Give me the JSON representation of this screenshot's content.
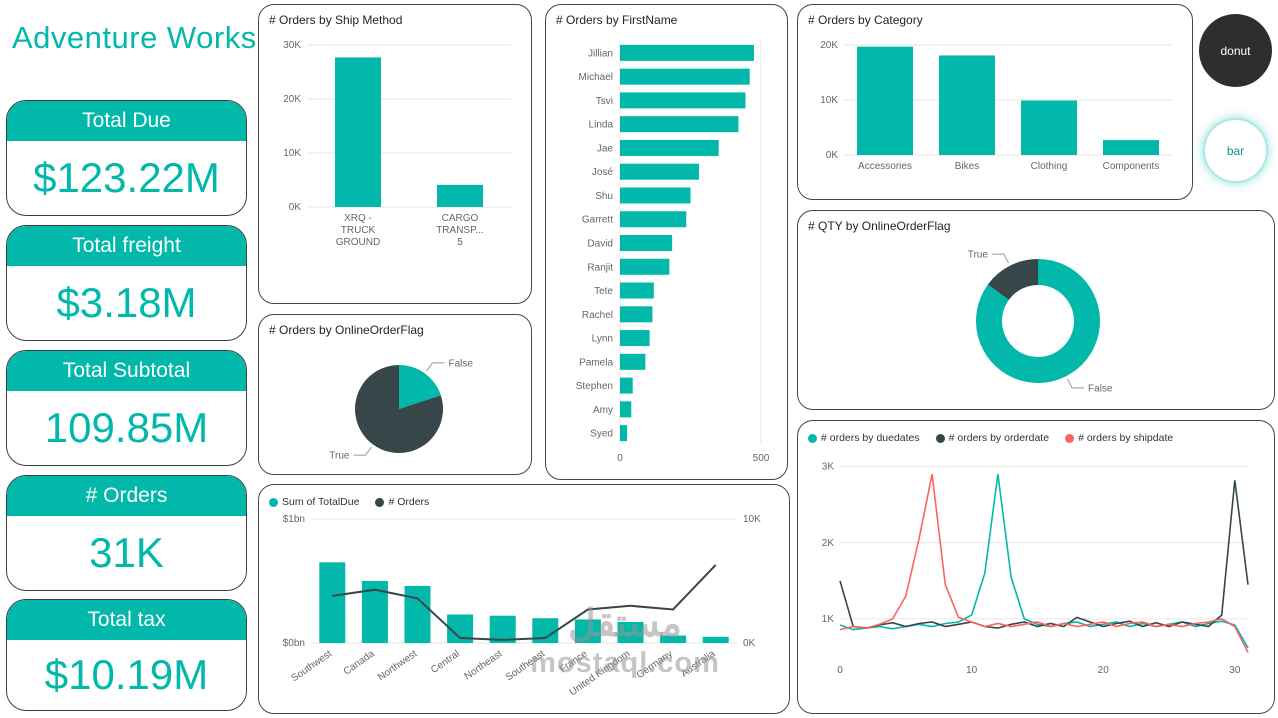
{
  "brand": {
    "title": "Adventure Works"
  },
  "colors": {
    "teal": "#01B8AA",
    "dark": "#374649",
    "red": "#FD625E",
    "axis": "#666666",
    "grid": "#E6E6E6"
  },
  "kpis": [
    {
      "label": "Total Due",
      "value": "$123.22M"
    },
    {
      "label": "Total freight",
      "value": "$3.18M"
    },
    {
      "label": "Total Subtotal",
      "value": "109.85M"
    },
    {
      "label": "# Orders",
      "value": "31K"
    },
    {
      "label": "Total tax",
      "value": "$10.19M"
    }
  ],
  "view_buttons": [
    {
      "label": "donut"
    },
    {
      "label": "bar"
    }
  ],
  "watermark": {
    "line1": "مستقل",
    "line2": "mostaql.com"
  },
  "chart_data": [
    {
      "id": "ship_method",
      "type": "bar",
      "title": "# Orders by Ship Method",
      "categories": [
        "XRQ - TRUCK GROUND",
        "CARGO TRANSP... 5"
      ],
      "cat_lines": [
        [
          "XRQ -",
          "TRUCK",
          "GROUND"
        ],
        [
          "CARGO",
          "TRANSP...",
          "5"
        ]
      ],
      "values": [
        27700,
        4100
      ],
      "ylim": [
        0,
        30000
      ],
      "yticks": [
        "0K",
        "10K",
        "20K",
        "30K"
      ],
      "xlabel": "",
      "ylabel": ""
    },
    {
      "id": "online_flag_pie",
      "type": "pie",
      "title": "# Orders by OnlineOrderFlag",
      "slices": [
        {
          "label": "False",
          "value": 20,
          "color": "teal"
        },
        {
          "label": "True",
          "value": 80,
          "color": "dark"
        }
      ]
    },
    {
      "id": "firstname",
      "type": "bar-horizontal",
      "title": "# Orders by FirstName",
      "categories": [
        "Jillian",
        "Michael",
        "Tsvi",
        "Linda",
        "Jae",
        "José",
        "Shu",
        "Garrett",
        "David",
        "Ranjit",
        "Tete",
        "Rachel",
        "Lynn",
        "Pamela",
        "Stephen",
        "Amy",
        "Syed"
      ],
      "values": [
        475,
        460,
        445,
        420,
        350,
        280,
        250,
        235,
        185,
        175,
        120,
        115,
        105,
        90,
        45,
        40,
        25
      ],
      "xlim": [
        0,
        500
      ],
      "xticks": [
        {
          "v": 0,
          "t": "0"
        },
        {
          "v": 500,
          "t": "500"
        }
      ]
    },
    {
      "id": "category",
      "type": "bar",
      "title": "# Orders by Category",
      "categories": [
        "Accessories",
        "Bikes",
        "Clothing",
        "Components"
      ],
      "values": [
        19700,
        18100,
        9900,
        2700
      ],
      "ylim": [
        0,
        20000
      ],
      "yticks": [
        "0K",
        "10K",
        "20K"
      ]
    },
    {
      "id": "qty_donut",
      "type": "donut",
      "title": "# QTY by OnlineOrderFlag",
      "slices": [
        {
          "label": "False",
          "value": 85,
          "color": "teal"
        },
        {
          "label": "True",
          "value": 15,
          "color": "dark"
        }
      ]
    },
    {
      "id": "region_combo",
      "type": "combo",
      "title": "",
      "legend": [
        {
          "label": "Sum of TotalDue",
          "color": "teal"
        },
        {
          "label": "# Orders",
          "color": "dark"
        }
      ],
      "categories": [
        "Southwest",
        "Canada",
        "Northwest",
        "Central",
        "Northeast",
        "Southeast",
        "France",
        "United Kingdom",
        "Germany",
        "Australia"
      ],
      "bar_values_bn": [
        0.65,
        0.5,
        0.46,
        0.23,
        0.22,
        0.2,
        0.19,
        0.17,
        0.06,
        0.05
      ],
      "line_values_k": [
        3.8,
        4.3,
        3.6,
        0.4,
        0.25,
        0.4,
        2.7,
        3.0,
        2.7,
        6.3
      ],
      "left_axis": {
        "lim": [
          0,
          1
        ],
        "ticks": [
          "$0bn",
          "$1bn"
        ]
      },
      "right_axis": {
        "lim": [
          0,
          10
        ],
        "ticks": [
          "0K",
          "10K"
        ]
      }
    },
    {
      "id": "orders_by_date",
      "type": "line",
      "title": "",
      "legend": [
        {
          "label": "# orders by duedates",
          "color": "teal"
        },
        {
          "label": "# orders by orderdate",
          "color": "dark"
        },
        {
          "label": "# orders by shipdate",
          "color": "red"
        }
      ],
      "xlim": [
        0,
        31
      ],
      "xticks": [
        0,
        10,
        20,
        30
      ],
      "ylim": [
        0.5,
        3.1
      ],
      "yticks": [
        {
          "v": 1,
          "t": "1K"
        },
        {
          "v": 2,
          "t": "2K"
        },
        {
          "v": 3,
          "t": "3K"
        }
      ],
      "series": [
        {
          "name": "# orders by duedates",
          "color": "teal",
          "values": [
            0.92,
            0.86,
            0.88,
            0.9,
            0.87,
            0.9,
            0.93,
            0.9,
            0.94,
            0.96,
            1.05,
            1.6,
            2.9,
            1.55,
            1.0,
            0.93,
            0.9,
            0.94,
            0.96,
            0.9,
            0.93,
            0.96,
            0.9,
            0.94,
            0.9,
            0.93,
            0.96,
            0.9,
            0.94,
            0.97,
            0.92,
            0.62
          ]
        },
        {
          "name": "# orders by orderdate",
          "color": "dark",
          "values": [
            1.5,
            0.9,
            0.88,
            0.92,
            0.95,
            0.9,
            0.94,
            0.96,
            0.9,
            0.93,
            0.96,
            0.9,
            0.88,
            0.93,
            0.96,
            0.9,
            0.94,
            0.9,
            1.02,
            0.96,
            0.9,
            0.94,
            0.97,
            0.9,
            0.95,
            0.9,
            0.96,
            0.93,
            0.9,
            1.05,
            2.82,
            1.45
          ]
        },
        {
          "name": "# orders by shipdate",
          "color": "red",
          "values": [
            0.86,
            0.9,
            0.88,
            0.93,
            1.0,
            1.3,
            2.05,
            2.9,
            1.45,
            1.02,
            0.96,
            0.9,
            0.94,
            0.9,
            0.93,
            0.96,
            0.9,
            0.94,
            0.9,
            0.93,
            0.96,
            0.9,
            0.94,
            0.96,
            0.9,
            0.93,
            0.9,
            0.94,
            0.96,
            1.0,
            0.9,
            0.56
          ]
        }
      ]
    }
  ]
}
